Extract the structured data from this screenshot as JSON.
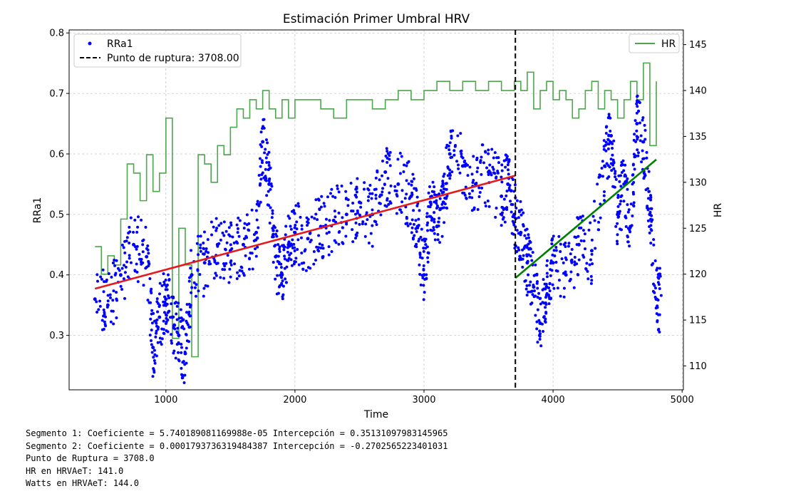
{
  "chart_data": {
    "type": "scatter",
    "title": "Estimación Primer Umbral HRV",
    "xlabel": "Time",
    "ylabel": "RRa1",
    "y2label": "HR",
    "xlim": [
      250,
      5010
    ],
    "ylim": [
      0.21,
      0.805
    ],
    "y2lim": [
      107.4,
      146.6
    ],
    "xticks": [
      "1000",
      "2000",
      "3000",
      "4000",
      "5000"
    ],
    "yticks": [
      "0.3",
      "0.4",
      "0.5",
      "0.6",
      "0.7",
      "0.8"
    ],
    "y2ticks": [
      "110",
      "115",
      "120",
      "125",
      "130",
      "135",
      "140",
      "145"
    ],
    "grid": true,
    "breakpoint": 3708.0,
    "legend_left": {
      "position": "top-left",
      "entries": [
        {
          "label": "RRa1",
          "marker": "dot",
          "color": "#0000ff"
        },
        {
          "label": "Punto de ruptura: 3708.00",
          "marker": "dashed-line",
          "color": "#000000"
        }
      ]
    },
    "legend_right": {
      "position": "top-right",
      "entries": [
        {
          "label": "HR",
          "marker": "line",
          "color": "#4ca64c"
        }
      ]
    },
    "segments": [
      {
        "name": "Segmento 1",
        "x_range": [
          450,
          3708
        ],
        "coef": 5.740189081169988e-05,
        "intercept": 0.35131097983145965,
        "color": "#e41a1c"
      },
      {
        "name": "Segmento 2",
        "x_range": [
          3708,
          4800
        ],
        "coef": 0.0001793736319484387,
        "intercept": -0.2702565223401031,
        "color": "#008000"
      }
    ],
    "rra1_series": {
      "name": "RRa1",
      "color": "#0000ff",
      "x": [
        450,
        550,
        650,
        750,
        850,
        900,
        950,
        1000,
        1050,
        1100,
        1150,
        1200,
        1300,
        1400,
        1500,
        1600,
        1700,
        1750,
        1800,
        1850,
        1900,
        1950,
        2000,
        2100,
        2200,
        2300,
        2400,
        2500,
        2600,
        2700,
        2800,
        2900,
        2950,
        3000,
        3050,
        3100,
        3150,
        3200,
        3300,
        3400,
        3500,
        3600,
        3650,
        3700,
        3750,
        3800,
        3850,
        3900,
        3950,
        4000,
        4100,
        4200,
        4300,
        4400,
        4450,
        4500,
        4550,
        4600,
        4650,
        4700,
        4750,
        4800
      ],
      "y": [
        0.36,
        0.35,
        0.4,
        0.45,
        0.43,
        0.28,
        0.33,
        0.36,
        0.33,
        0.3,
        0.27,
        0.4,
        0.42,
        0.45,
        0.44,
        0.45,
        0.47,
        0.62,
        0.55,
        0.43,
        0.4,
        0.45,
        0.47,
        0.46,
        0.48,
        0.49,
        0.5,
        0.52,
        0.5,
        0.57,
        0.55,
        0.53,
        0.48,
        0.4,
        0.52,
        0.48,
        0.52,
        0.6,
        0.58,
        0.55,
        0.57,
        0.53,
        0.55,
        0.5,
        0.47,
        0.42,
        0.38,
        0.32,
        0.38,
        0.42,
        0.4,
        0.45,
        0.44,
        0.58,
        0.63,
        0.5,
        0.55,
        0.48,
        0.65,
        0.62,
        0.5,
        0.36
      ]
    },
    "hr_series": {
      "name": "HR",
      "color": "#4ca64c",
      "x": [
        450,
        500,
        550,
        600,
        650,
        700,
        750,
        800,
        850,
        900,
        950,
        1000,
        1050,
        1100,
        1150,
        1200,
        1250,
        1300,
        1350,
        1400,
        1450,
        1500,
        1550,
        1600,
        1650,
        1700,
        1750,
        1800,
        1850,
        1900,
        1950,
        2000,
        2100,
        2200,
        2300,
        2400,
        2500,
        2600,
        2700,
        2800,
        2900,
        3000,
        3100,
        3200,
        3300,
        3400,
        3500,
        3600,
        3700,
        3750,
        3800,
        3850,
        3900,
        3950,
        4000,
        4050,
        4100,
        4150,
        4200,
        4250,
        4300,
        4350,
        4400,
        4450,
        4500,
        4550,
        4600,
        4650,
        4700,
        4750,
        4800
      ],
      "y": [
        123,
        120,
        122,
        121,
        126,
        132,
        131,
        128,
        133,
        129,
        131,
        137,
        113,
        125,
        121,
        111,
        133,
        132,
        130,
        134,
        133,
        136,
        138,
        137,
        139,
        138,
        140,
        138,
        137,
        139,
        137,
        139,
        139,
        138,
        137,
        139,
        139,
        138,
        139,
        140,
        139,
        140,
        141,
        140,
        141,
        140,
        141,
        140,
        141,
        140,
        142,
        138,
        140,
        141,
        139,
        140,
        139,
        137,
        138,
        140,
        141,
        138,
        140,
        139,
        137,
        139,
        141,
        139,
        143,
        134,
        141
      ]
    }
  },
  "stats": {
    "line1": "Segmento 1: Coeficiente = 5.740189081169988e-05 Intercepción = 0.35131097983145965",
    "line2": "Segmento 2: Coeficiente = 0.0001793736319484387 Intercepción = -0.2702565223401031",
    "line3": "Punto de Ruptura = 3708.0",
    "line4": "HR en HRVAeT: 141.0",
    "line5": "Watts en HRVAeT: 144.0"
  }
}
